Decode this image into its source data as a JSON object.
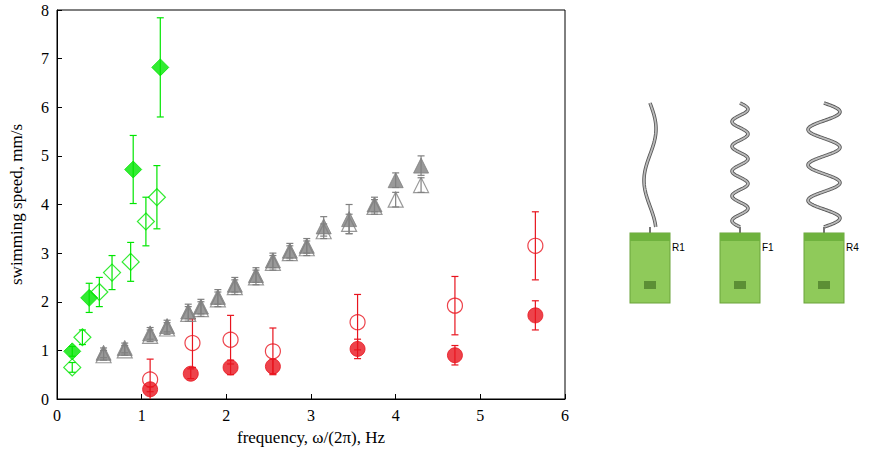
{
  "chart_data": {
    "type": "scatter",
    "x_label": "frequency, ω/(2π), Hz",
    "y_label": "swimming speed, mm/s",
    "xlim": [
      0,
      6
    ],
    "xticks": [
      0,
      1,
      2,
      3,
      4,
      5,
      6
    ],
    "ylim": [
      0,
      8
    ],
    "yticks": [
      0,
      1,
      2,
      3,
      4,
      5,
      6,
      7,
      8
    ],
    "grid": false,
    "series": [
      {
        "color": "#00e600",
        "marker": "diamond",
        "x": [
          0.18,
          0.38,
          0.9,
          1.22
        ],
        "values": [
          0.98,
          2.08,
          4.72,
          6.82
        ],
        "errors": [
          0.1,
          0.3,
          0.7,
          1.02
        ]
      },
      {
        "color": "#00e600",
        "marker": "open_diamond",
        "x": [
          0.18,
          0.3,
          0.5,
          0.65,
          0.87,
          1.05,
          1.18
        ],
        "values": [
          0.65,
          1.27,
          2.2,
          2.6,
          2.82,
          3.65,
          4.15
        ],
        "errors": [
          0.1,
          0.15,
          0.3,
          0.35,
          0.4,
          0.5,
          0.65
        ]
      },
      {
        "color": "#808080",
        "marker": "triangle",
        "x": [
          0.55,
          0.8,
          1.1,
          1.3,
          1.55,
          1.7,
          1.9,
          2.1,
          2.35,
          2.55,
          2.75,
          2.95,
          3.15,
          3.45,
          3.75,
          4.0,
          4.3
        ],
        "values": [
          0.95,
          1.05,
          1.35,
          1.5,
          1.8,
          1.9,
          2.1,
          2.35,
          2.55,
          2.85,
          3.05,
          3.15,
          3.55,
          3.7,
          4.0,
          4.5,
          4.8
        ],
        "errors": [
          0.1,
          0.1,
          0.12,
          0.12,
          0.15,
          0.15,
          0.15,
          0.15,
          0.15,
          0.15,
          0.15,
          0.15,
          0.2,
          0.3,
          0.15,
          0.15,
          0.2
        ]
      },
      {
        "color": "#808080",
        "marker": "open_triangle",
        "x": [
          0.55,
          0.8,
          1.1,
          1.3,
          1.55,
          1.7,
          1.9,
          2.1,
          2.35,
          2.55,
          2.75,
          2.95,
          3.15,
          3.45,
          3.75,
          4.0,
          4.3
        ],
        "values": [
          0.9,
          1.0,
          1.3,
          1.45,
          1.75,
          1.85,
          2.05,
          2.3,
          2.5,
          2.8,
          3.0,
          3.1,
          3.45,
          3.6,
          3.95,
          4.1,
          4.4
        ],
        "errors": [
          0.1,
          0.1,
          0.12,
          0.12,
          0.15,
          0.15,
          0.15,
          0.15,
          0.15,
          0.15,
          0.15,
          0.15,
          0.15,
          0.2,
          0.15,
          0.15,
          0.15
        ]
      },
      {
        "color": "#e8141e",
        "marker": "circle",
        "x": [
          1.1,
          1.58,
          2.05,
          2.55,
          3.55,
          4.7,
          5.65
        ],
        "values": [
          0.2,
          0.52,
          0.65,
          0.67,
          1.03,
          0.9,
          1.72
        ],
        "errors": [
          0.05,
          0.1,
          0.15,
          0.15,
          0.2,
          0.2,
          0.3
        ]
      },
      {
        "color": "#e8141e",
        "marker": "open_circle",
        "x": [
          1.1,
          1.6,
          2.05,
          2.55,
          3.55,
          4.7,
          5.65
        ],
        "values": [
          0.4,
          1.15,
          1.22,
          0.98,
          1.58,
          1.92,
          3.15
        ],
        "errors": [
          0.42,
          0.5,
          0.5,
          0.48,
          0.57,
          0.6,
          0.7
        ]
      }
    ]
  },
  "inset": {
    "labels": [
      "R1",
      "F1",
      "R4"
    ]
  }
}
